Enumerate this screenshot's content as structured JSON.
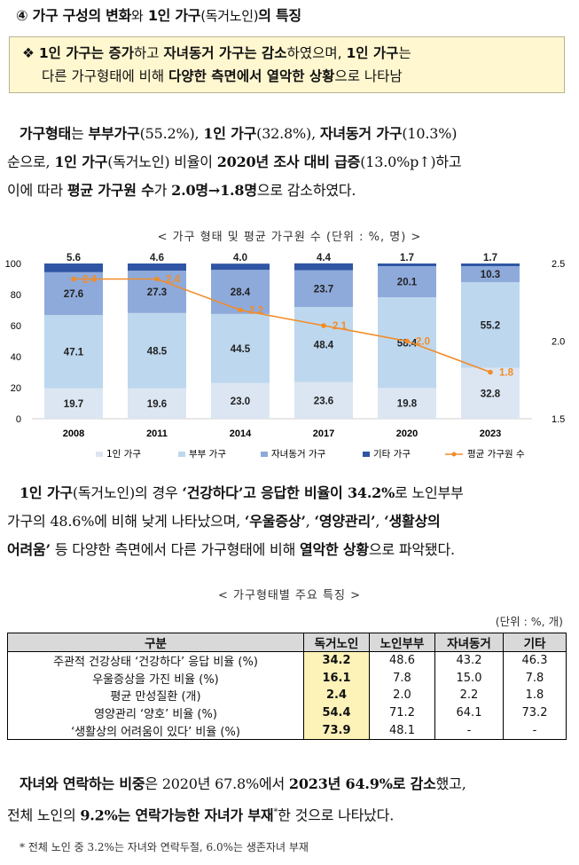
{
  "heading": {
    "num": "④",
    "part1": "가구 구성의 변화",
    "part2": "와",
    "part3": "1인 가구",
    "part4": "(독거노인)",
    "part5": "의 특징"
  },
  "summary": {
    "bullet": "❖",
    "line1": [
      {
        "t": "1인 가구는 증가",
        "b": true
      },
      {
        "t": "하고 ",
        "b": false
      },
      {
        "t": "자녀동거 가구는 감소",
        "b": true
      },
      {
        "t": "하였으며, ",
        "b": false
      },
      {
        "t": "1인 가구",
        "b": true
      },
      {
        "t": "는",
        "b": false
      }
    ],
    "line2": [
      {
        "t": "다른 가구형태에 비해 ",
        "b": false
      },
      {
        "t": "다양한 측면에서 열악한 상황",
        "b": true
      },
      {
        "t": "으로 나타남",
        "b": false
      }
    ]
  },
  "para1": [
    {
      "t": "가구형태",
      "b": true
    },
    {
      "t": "는 ",
      "b": false
    },
    {
      "t": "부부가구",
      "b": true
    },
    {
      "t": "(55.2%), ",
      "b": false
    },
    {
      "t": "1인 가구",
      "b": true
    },
    {
      "t": "(32.8%), ",
      "b": false
    },
    {
      "t": "자녀동거 가구",
      "b": true
    },
    {
      "t": "(10.3%)",
      "b": false
    },
    {
      "t": "순으로, ",
      "b": false
    },
    {
      "t": "1인 가구",
      "b": true
    },
    {
      "t": "(독거노인) 비율이 ",
      "b": false
    },
    {
      "t": "2020년 조사 대비 급증",
      "b": true
    },
    {
      "t": "(13.0%p↑)하고",
      "b": false
    },
    {
      "t": "이에 따라 ",
      "b": false
    },
    {
      "t": "평균 가구원 수",
      "b": true
    },
    {
      "t": "가 ",
      "b": false
    },
    {
      "t": "2.0명→1.8명",
      "b": true
    },
    {
      "t": "으로 감소하였다.",
      "b": false
    }
  ],
  "chart_caption": "< 가구 형태 및 평균 가구원 수 (단위 : %, 명) >",
  "chart_data": {
    "type": "bar",
    "stacked": true,
    "categories": [
      "2008",
      "2011",
      "2014",
      "2017",
      "2020",
      "2023"
    ],
    "series": [
      {
        "name": "1인 가구",
        "values": [
          19.7,
          19.6,
          23.0,
          23.6,
          19.8,
          32.8
        ],
        "color": "#dce6f2"
      },
      {
        "name": "부부 가구",
        "values": [
          47.1,
          48.5,
          44.5,
          48.4,
          58.4,
          55.2
        ],
        "color": "#bdd7ee"
      },
      {
        "name": "자녀동거 가구",
        "values": [
          27.6,
          27.3,
          28.4,
          23.7,
          20.1,
          10.3
        ],
        "color": "#8eaadb"
      },
      {
        "name": "기타 가구",
        "values": [
          5.6,
          4.6,
          4.0,
          4.4,
          1.7,
          1.7
        ],
        "color": "#2f55a4"
      }
    ],
    "line": {
      "name": "평균 가구원 수",
      "values": [
        2.4,
        2.4,
        2.2,
        2.1,
        2.0,
        1.8
      ],
      "color": "#f28c28",
      "axis": "right"
    },
    "ylim": [
      0,
      100
    ],
    "yticks": [
      0,
      20,
      40,
      60,
      80,
      100
    ],
    "y2lim": [
      1.5,
      2.5
    ],
    "y2ticks": [
      "1.5",
      "2.0",
      "2.5"
    ],
    "legend_position": "bottom"
  },
  "para2": [
    {
      "t": "1인 가구",
      "b": true
    },
    {
      "t": "(독거노인)의 경우 ",
      "b": false
    },
    {
      "t": "‘건강하다’고 응답한 비율이 34.2%",
      "b": true
    },
    {
      "t": "로 노인부부",
      "b": false
    },
    {
      "t": "가구의 48.6%에 비해 낮게 나타났으며, ",
      "b": false
    },
    {
      "t": "‘우울증상’",
      "b": true
    },
    {
      "t": ", ",
      "b": false
    },
    {
      "t": "‘영양관리’",
      "b": true
    },
    {
      "t": ", ",
      "b": false
    },
    {
      "t": "‘생활상의",
      "b": true
    },
    {
      "t": "어려움’",
      "b": true
    },
    {
      "t": " 등 다양한 측면에서 다른 가구형태에 비해 ",
      "b": false
    },
    {
      "t": "열악한 상황",
      "b": true
    },
    {
      "t": "으로 파악됐다.",
      "b": false
    }
  ],
  "table_caption": "< 가구형태별 주요 특징 >",
  "table_unit": "(단위 : %, 개)",
  "table": {
    "headers": [
      "구분",
      "독거노인",
      "노인부부",
      "자녀동거",
      "기타"
    ],
    "rows": [
      [
        "주관적 건강상태 ‘건강하다’ 응답 비율 (%)",
        "34.2",
        "48.6",
        "43.2",
        "46.3"
      ],
      [
        "우울증상을 가진 비율 (%)",
        "16.1",
        "7.8",
        "15.0",
        "7.8"
      ],
      [
        "평균 만성질환 (개)",
        "2.4",
        "2.0",
        "2.2",
        "1.8"
      ],
      [
        "영양관리 ‘양호’ 비율 (%)",
        "54.4",
        "71.2",
        "64.1",
        "73.2"
      ],
      [
        "‘생활상의 어려움이 있다’ 비율 (%)",
        "73.9",
        "48.1",
        "-",
        "-"
      ]
    ]
  },
  "para3": [
    {
      "t": "자녀와 연락하는 비중",
      "b": true
    },
    {
      "t": "은 2020년 67.8%에서 ",
      "b": false
    },
    {
      "t": "2023년 64.9%로 감소",
      "b": true
    },
    {
      "t": "했고,",
      "b": false
    },
    {
      "t": "전체 노인의 ",
      "b": false
    },
    {
      "t": "9.2%는 연락가능한 자녀가 부재",
      "b": true
    },
    {
      "t": "*",
      "b": false,
      "sup": true
    },
    {
      "t": "한 것으로 나타났다.",
      "b": false
    }
  ],
  "footnote": "* 전체 노인 중 3.2%는 자녀와 연락두절, 6.0%는 생존자녀 부재"
}
